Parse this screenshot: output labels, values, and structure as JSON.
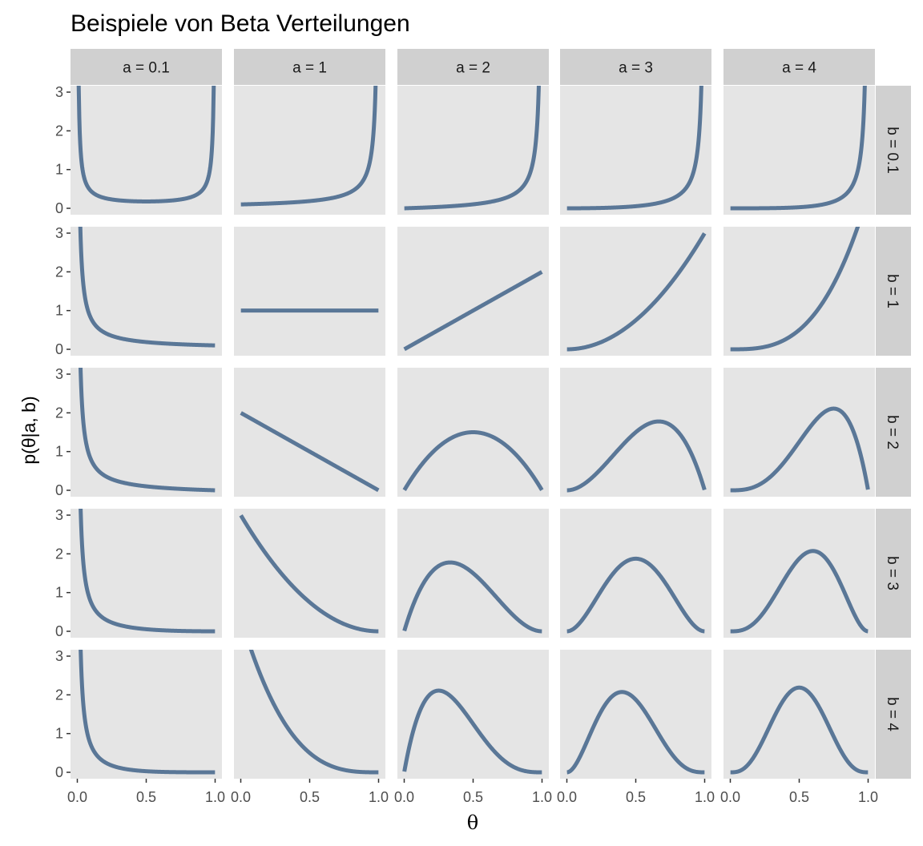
{
  "chart_data": {
    "type": "line",
    "title": "Beispiele von Beta Verteilungen",
    "xlabel": "θ",
    "ylabel": "p(θ|a, b)",
    "xlim": [
      0,
      1
    ],
    "ylim": [
      0,
      3
    ],
    "x_ticks": [
      "0.0",
      "0.5",
      "1.0"
    ],
    "y_ticks": [
      "0",
      "1",
      "2",
      "3"
    ],
    "col_facet_labels": [
      "a = 0.1",
      "a = 1",
      "a = 2",
      "a = 3",
      "a = 4"
    ],
    "row_facet_labels": [
      "b = 0.1",
      "b = 1",
      "b = 2",
      "b = 3",
      "b = 4"
    ],
    "a_values": [
      0.1,
      1,
      2,
      3,
      4
    ],
    "b_values": [
      0.1,
      1,
      2,
      3,
      4
    ],
    "line_color": "#4a6a8e",
    "panel_background": "#e5e5e5",
    "strip_background": "#d0d0d0",
    "grid": false,
    "legend": "none"
  }
}
